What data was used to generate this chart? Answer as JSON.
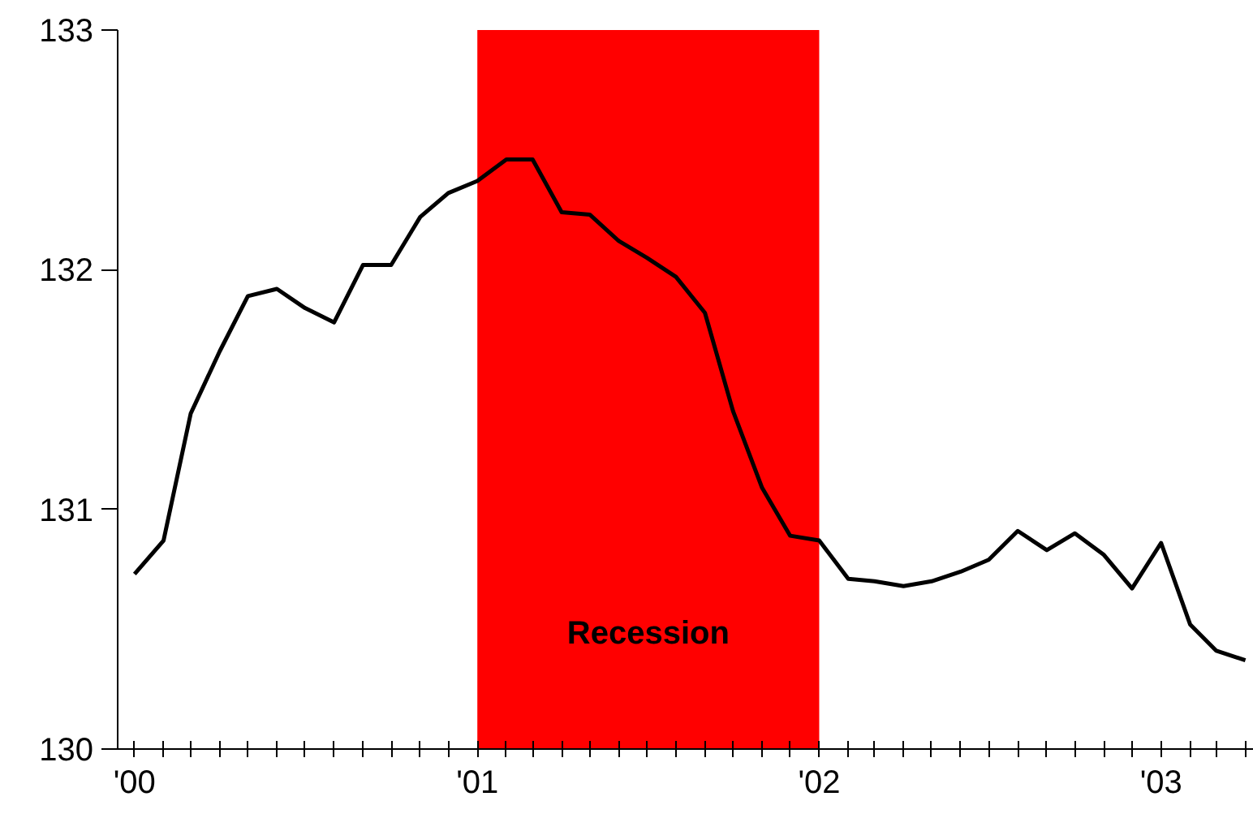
{
  "chart_data": {
    "type": "line",
    "x": [
      "2000-01",
      "2000-02",
      "2000-03",
      "2000-04",
      "2000-05",
      "2000-06",
      "2000-07",
      "2000-08",
      "2000-09",
      "2000-10",
      "2000-11",
      "2000-12",
      "2001-01",
      "2001-02",
      "2001-03",
      "2001-04",
      "2001-05",
      "2001-06",
      "2001-07",
      "2001-08",
      "2001-09",
      "2001-10",
      "2001-11",
      "2001-12",
      "2002-01",
      "2002-02",
      "2002-03",
      "2002-04",
      "2002-05",
      "2002-06",
      "2002-07",
      "2002-08",
      "2002-09",
      "2002-10",
      "2002-11",
      "2002-12",
      "2003-01",
      "2003-02",
      "2003-03",
      "2003-04"
    ],
    "series": [
      {
        "color": "#000000",
        "values": [
          130.73,
          130.87,
          131.4,
          131.66,
          131.89,
          131.92,
          131.84,
          131.78,
          132.02,
          132.02,
          132.22,
          132.32,
          132.37,
          132.46,
          132.46,
          132.24,
          132.23,
          132.12,
          132.05,
          131.97,
          131.82,
          131.41,
          131.09,
          130.89,
          130.87,
          130.71,
          130.7,
          130.68,
          130.7,
          130.74,
          130.79,
          130.91,
          130.83,
          130.9,
          130.81,
          130.67,
          130.86,
          130.52,
          130.41,
          130.37
        ]
      }
    ],
    "xlim": [
      "1999-12-14",
      "2003-04-10"
    ],
    "ylim": [
      130,
      133
    ],
    "xticks": [
      {
        "value": "2000-01",
        "label": "'00"
      },
      {
        "value": "2000-02",
        "label": null
      },
      {
        "value": "2000-03",
        "label": null
      },
      {
        "value": "2000-04",
        "label": null
      },
      {
        "value": "2000-05",
        "label": null
      },
      {
        "value": "2000-06",
        "label": null
      },
      {
        "value": "2000-07",
        "label": null
      },
      {
        "value": "2000-08",
        "label": null
      },
      {
        "value": "2000-09",
        "label": null
      },
      {
        "value": "2000-10",
        "label": null
      },
      {
        "value": "2000-11",
        "label": null
      },
      {
        "value": "2000-12",
        "label": null
      },
      {
        "value": "2001-01",
        "label": "'01"
      },
      {
        "value": "2001-02",
        "label": null
      },
      {
        "value": "2001-03",
        "label": null
      },
      {
        "value": "2001-04",
        "label": null
      },
      {
        "value": "2001-05",
        "label": null
      },
      {
        "value": "2001-06",
        "label": null
      },
      {
        "value": "2001-07",
        "label": null
      },
      {
        "value": "2001-08",
        "label": null
      },
      {
        "value": "2001-09",
        "label": null
      },
      {
        "value": "2001-10",
        "label": null
      },
      {
        "value": "2001-11",
        "label": null
      },
      {
        "value": "2001-12",
        "label": null
      },
      {
        "value": "2002-01",
        "label": "'02"
      },
      {
        "value": "2002-02",
        "label": null
      },
      {
        "value": "2002-03",
        "label": null
      },
      {
        "value": "2002-04",
        "label": null
      },
      {
        "value": "2002-05",
        "label": null
      },
      {
        "value": "2002-06",
        "label": null
      },
      {
        "value": "2002-07",
        "label": null
      },
      {
        "value": "2002-08",
        "label": null
      },
      {
        "value": "2002-09",
        "label": null
      },
      {
        "value": "2002-10",
        "label": null
      },
      {
        "value": "2002-11",
        "label": null
      },
      {
        "value": "2002-12",
        "label": null
      },
      {
        "value": "2003-01",
        "label": "'03"
      },
      {
        "value": "2003-02",
        "label": null
      },
      {
        "value": "2003-03",
        "label": null
      },
      {
        "value": "2003-04",
        "label": null
      }
    ],
    "yticks": [
      130,
      131,
      132,
      133
    ],
    "bands": [
      {
        "axis": "x",
        "from": "2001-01",
        "to": "2002-01",
        "label": "Recession",
        "color": "#ff0000"
      }
    ],
    "grid": false,
    "marker": "none",
    "line_style": "solid"
  }
}
